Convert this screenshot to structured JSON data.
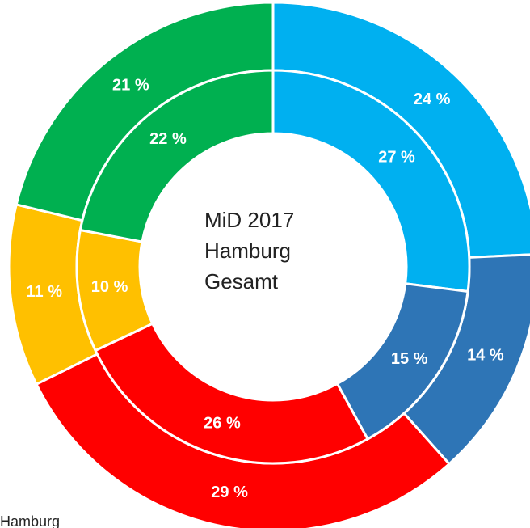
{
  "chart_data": {
    "type": "donut",
    "center_text": [
      "MiD 2017",
      "Hamburg",
      "Gesamt"
    ],
    "footer_text": "Hamburg",
    "colors": [
      "#00b0f0",
      "#2e75b6",
      "#ff0000",
      "#ffc000",
      "#00b050"
    ],
    "series": [
      {
        "values": [
          24,
          14,
          29,
          11,
          21
        ],
        "value_labels": [
          "24 %",
          "14 %",
          "29 %",
          "11 %",
          "21 %"
        ]
      },
      {
        "values": [
          27,
          15,
          26,
          10,
          22
        ],
        "value_labels": [
          "27 %",
          "15 %",
          "26 %",
          "10 %",
          "22 %"
        ]
      }
    ]
  }
}
